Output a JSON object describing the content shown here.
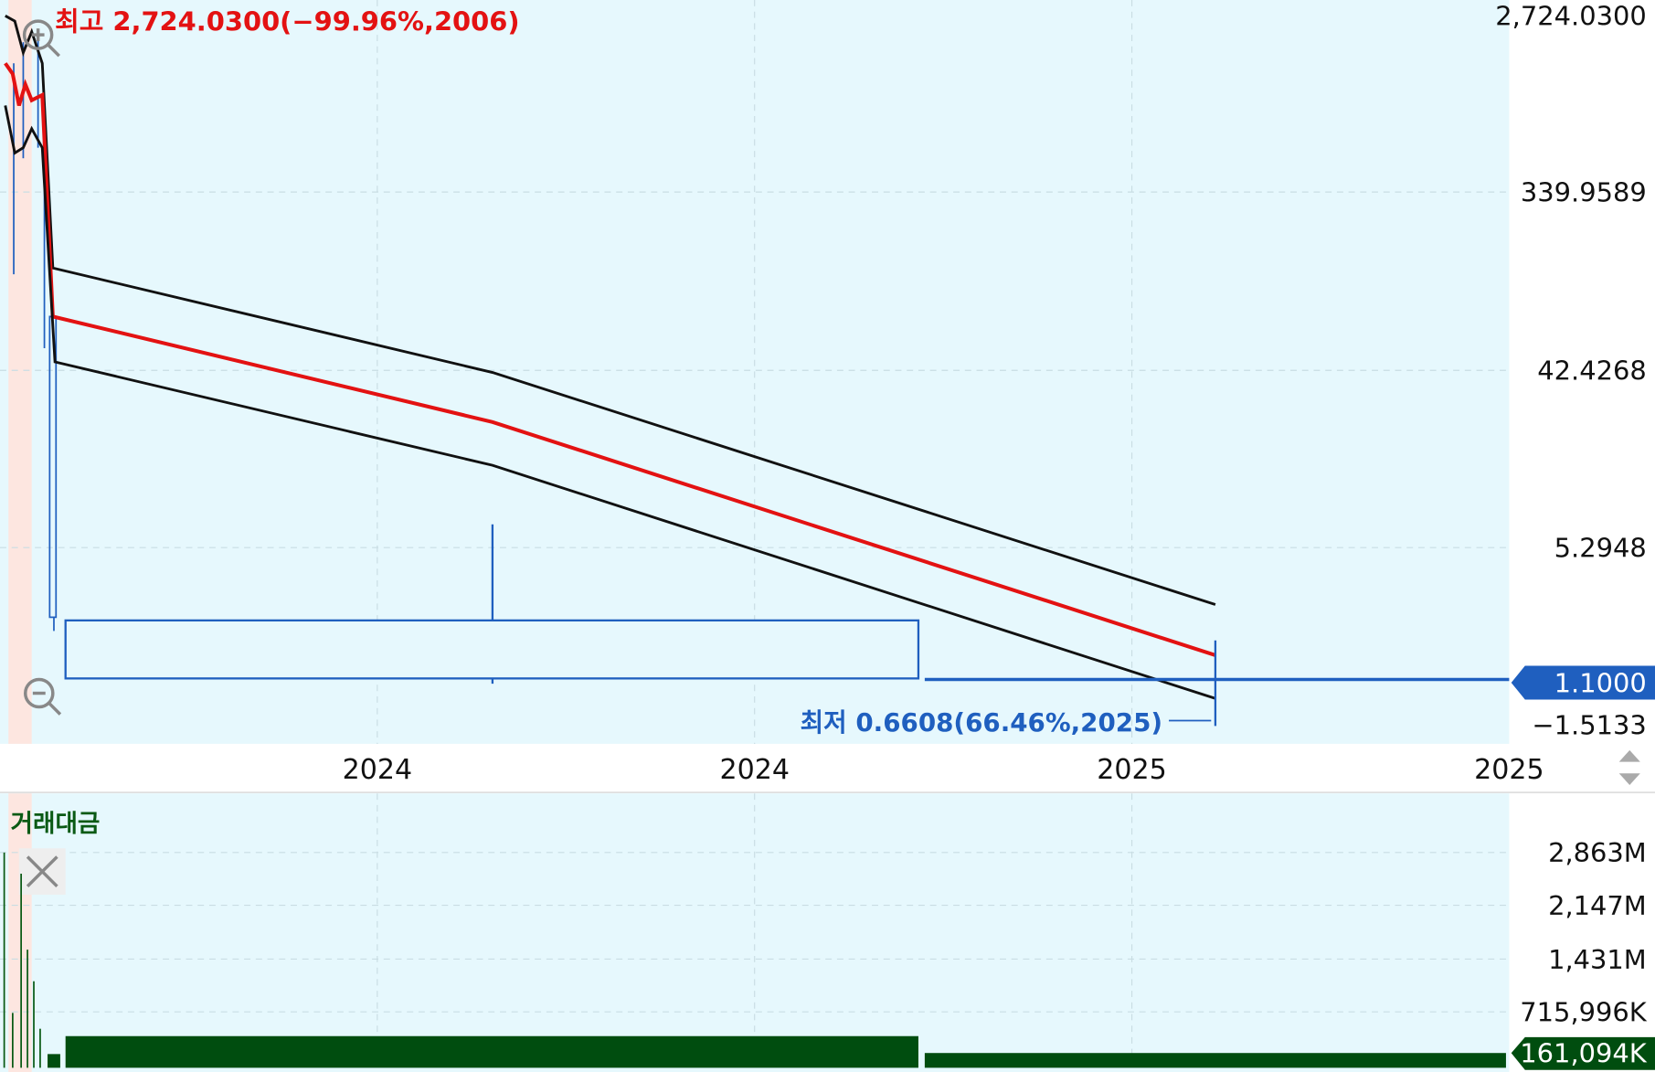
{
  "price_panel": {
    "high_label": "최고 2,724.0300(−99.96%,2006)",
    "low_label": "최저 0.6608(66.46%,2025)",
    "y_axis_labels": [
      "2,724.0300",
      "339.9589",
      "42.4268",
      "5.2948",
      "−1.5133"
    ],
    "current_price": "1.1000",
    "x_axis_labels": [
      "2024",
      "2024",
      "2025",
      "2025"
    ]
  },
  "volume_panel": {
    "title": "거래대금",
    "y_axis_labels": [
      "2,863M",
      "2,147M",
      "1,431M",
      "715,996K"
    ],
    "current_value": "161,094K"
  }
}
